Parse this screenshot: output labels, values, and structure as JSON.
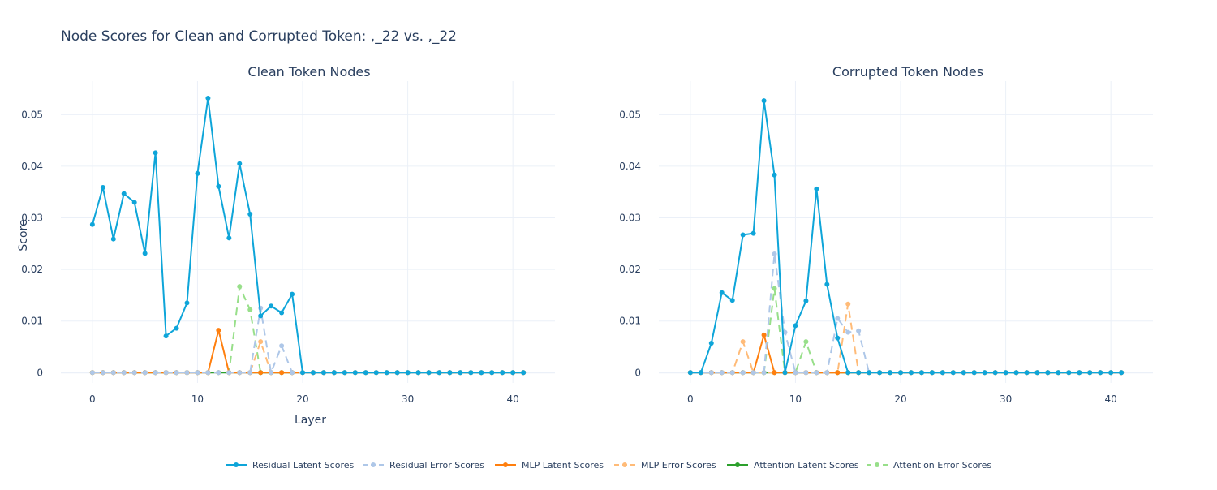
{
  "title": "Node Scores for Clean and Corrupted Token: ,_22 vs. ,_22",
  "legend": {
    "placement": "bottom-center",
    "orientation": "horizontal"
  },
  "chart_data": [
    {
      "type": "line",
      "subplot_title": "Clean Token Nodes",
      "xlabel": "Layer",
      "ylabel": "Score",
      "xlim": [
        -3,
        44
      ],
      "ylim": [
        -0.002,
        0.0565
      ],
      "xticks": [
        0,
        10,
        20,
        30,
        40
      ],
      "yticks": [
        0,
        0.01,
        0.02,
        0.03,
        0.04,
        0.05
      ],
      "ytick_labels": [
        "0",
        "0.01",
        "0.02",
        "0.03",
        "0.04",
        "0.05"
      ],
      "grid": true,
      "x": [
        0,
        1,
        2,
        3,
        4,
        5,
        6,
        7,
        8,
        9,
        10,
        11,
        12,
        13,
        14,
        15,
        16,
        17,
        18,
        19,
        20,
        21,
        22,
        23,
        24,
        25,
        26,
        27,
        28,
        29,
        30,
        31,
        32,
        33,
        34,
        35,
        36,
        37,
        38,
        39,
        40,
        41
      ],
      "series": [
        {
          "name": "Residual Latent Scores",
          "color": "#0ea5d9",
          "dash": "solid",
          "values": [
            0.0287,
            0.0359,
            0.0259,
            0.0347,
            0.033,
            0.0231,
            0.0426,
            0.0071,
            0.0086,
            0.0135,
            0.0386,
            0.0532,
            0.0361,
            0.0261,
            0.0405,
            0.0307,
            0.011,
            0.0129,
            0.0116,
            0.0152,
            0,
            0,
            0,
            0,
            0,
            0,
            0,
            0,
            0,
            0,
            0,
            0,
            0,
            0,
            0,
            0,
            0,
            0,
            0,
            0,
            0,
            0
          ]
        },
        {
          "name": " Residual Error Scores",
          "color": "#aec7e8",
          "dash": "dash",
          "values": [
            0,
            0,
            0,
            0,
            0,
            0,
            0,
            0,
            0,
            0,
            0,
            0,
            0,
            0,
            0,
            0,
            0.0125,
            0,
            0.0052,
            0,
            0,
            0,
            0,
            0,
            0,
            0,
            0,
            0,
            0,
            0,
            0,
            0,
            0,
            0,
            0,
            0,
            0,
            0,
            0,
            0,
            0,
            0
          ]
        },
        {
          "name": "MLP Latent Scores",
          "color": "#ff7f0e",
          "dash": "solid",
          "values": [
            0,
            0,
            0,
            0,
            0,
            0,
            0,
            0,
            0,
            0,
            0,
            0,
            0.0082,
            0,
            0,
            0,
            0,
            0,
            0,
            0,
            0,
            0,
            0,
            0,
            0,
            0,
            0,
            0,
            0,
            0,
            0,
            0,
            0,
            0,
            0,
            0,
            0,
            0,
            0,
            0,
            0,
            0
          ]
        },
        {
          "name": "MLP Error Scores",
          "color": "#ffbb78",
          "dash": "dash",
          "values": [
            0,
            0,
            0,
            0,
            0,
            0,
            0,
            0,
            0,
            0,
            0,
            0,
            0,
            0,
            0,
            0,
            0.006,
            0,
            0,
            0,
            0,
            0,
            0,
            0,
            0,
            0,
            0,
            0,
            0,
            0,
            0,
            0,
            0,
            0,
            0,
            0,
            0,
            0,
            0,
            0,
            0,
            0
          ]
        },
        {
          "name": "Attention Latent Scores",
          "color": "#2ca02c",
          "dash": "solid",
          "values": [
            0,
            0,
            0,
            0,
            0,
            0,
            0,
            0,
            0,
            0,
            0,
            0,
            0,
            0,
            0,
            0,
            0,
            0,
            0,
            0,
            0,
            0,
            0,
            0,
            0,
            0,
            0,
            0,
            0,
            0,
            0,
            0,
            0,
            0,
            0,
            0,
            0,
            0,
            0,
            0,
            0,
            0
          ]
        },
        {
          "name": "Attention Error Scores",
          "color": "#98df8a",
          "dash": "dash",
          "values": [
            0,
            0,
            0,
            0,
            0,
            0,
            0,
            0,
            0,
            0,
            0,
            0,
            0,
            0,
            0.0167,
            0.0122,
            0,
            0,
            0,
            0,
            0,
            0,
            0,
            0,
            0,
            0,
            0,
            0,
            0,
            0,
            0,
            0,
            0,
            0,
            0,
            0,
            0,
            0,
            0,
            0,
            0,
            0
          ]
        }
      ]
    },
    {
      "type": "line",
      "subplot_title": "Corrupted Token Nodes",
      "xlabel": "",
      "ylabel": "",
      "xlim": [
        -3,
        44
      ],
      "ylim": [
        -0.002,
        0.0565
      ],
      "xticks": [
        0,
        10,
        20,
        30,
        40
      ],
      "yticks": [
        0,
        0.01,
        0.02,
        0.03,
        0.04,
        0.05
      ],
      "ytick_labels": [
        "0",
        "0.01",
        "0.02",
        "0.03",
        "0.04",
        "0.05"
      ],
      "grid": true,
      "x": [
        0,
        1,
        2,
        3,
        4,
        5,
        6,
        7,
        8,
        9,
        10,
        11,
        12,
        13,
        14,
        15,
        16,
        17,
        18,
        19,
        20,
        21,
        22,
        23,
        24,
        25,
        26,
        27,
        28,
        29,
        30,
        31,
        32,
        33,
        34,
        35,
        36,
        37,
        38,
        39,
        40,
        41
      ],
      "series": [
        {
          "name": "Residual Latent Scores",
          "color": "#0ea5d9",
          "dash": "solid",
          "values": [
            0,
            0,
            0.0057,
            0.0155,
            0.014,
            0.0267,
            0.027,
            0.0527,
            0.0383,
            0,
            0.0091,
            0.0139,
            0.0356,
            0.0171,
            0.0067,
            0,
            0,
            0,
            0,
            0,
            0,
            0,
            0,
            0,
            0,
            0,
            0,
            0,
            0,
            0,
            0,
            0,
            0,
            0,
            0,
            0,
            0,
            0,
            0,
            0,
            0,
            0
          ]
        },
        {
          "name": " Residual Error Scores",
          "color": "#aec7e8",
          "dash": "dash",
          "values": [
            0,
            0,
            0,
            0,
            0,
            0,
            0,
            0,
            0.023,
            0.0078,
            0,
            0,
            0,
            0,
            0.0105,
            0.0078,
            0.0081,
            0,
            0,
            0,
            0,
            0,
            0,
            0,
            0,
            0,
            0,
            0,
            0,
            0,
            0,
            0,
            0,
            0,
            0,
            0,
            0,
            0,
            0,
            0,
            0,
            0
          ]
        },
        {
          "name": "MLP Latent Scores",
          "color": "#ff7f0e",
          "dash": "solid",
          "values": [
            0,
            0,
            0,
            0,
            0,
            0,
            0,
            0.0073,
            0,
            0,
            0,
            0,
            0,
            0,
            0,
            0,
            0,
            0,
            0,
            0,
            0,
            0,
            0,
            0,
            0,
            0,
            0,
            0,
            0,
            0,
            0,
            0,
            0,
            0,
            0,
            0,
            0,
            0,
            0,
            0,
            0,
            0
          ]
        },
        {
          "name": "MLP Error Scores",
          "color": "#ffbb78",
          "dash": "dash",
          "values": [
            0,
            0,
            0,
            0,
            0,
            0.006,
            0,
            0,
            0,
            0,
            0,
            0,
            0,
            0,
            0,
            0.0133,
            0,
            0,
            0,
            0,
            0,
            0,
            0,
            0,
            0,
            0,
            0,
            0,
            0,
            0,
            0,
            0,
            0,
            0,
            0,
            0,
            0,
            0,
            0,
            0,
            0,
            0
          ]
        },
        {
          "name": "Attention Latent Scores",
          "color": "#2ca02c",
          "dash": "solid",
          "values": [
            0,
            0,
            0,
            0,
            0,
            0,
            0,
            0,
            0,
            0,
            0,
            0,
            0,
            0,
            0,
            0,
            0,
            0,
            0,
            0,
            0,
            0,
            0,
            0,
            0,
            0,
            0,
            0,
            0,
            0,
            0,
            0,
            0,
            0,
            0,
            0,
            0,
            0,
            0,
            0,
            0,
            0
          ]
        },
        {
          "name": "Attention Error Scores",
          "color": "#98df8a",
          "dash": "dash",
          "values": [
            0,
            0,
            0,
            0,
            0,
            0,
            0,
            0,
            0.0163,
            0,
            0,
            0.006,
            0,
            0,
            0,
            0,
            0,
            0,
            0,
            0,
            0,
            0,
            0,
            0,
            0,
            0,
            0,
            0,
            0,
            0,
            0,
            0,
            0,
            0,
            0,
            0,
            0,
            0,
            0,
            0,
            0,
            0
          ]
        }
      ]
    }
  ]
}
